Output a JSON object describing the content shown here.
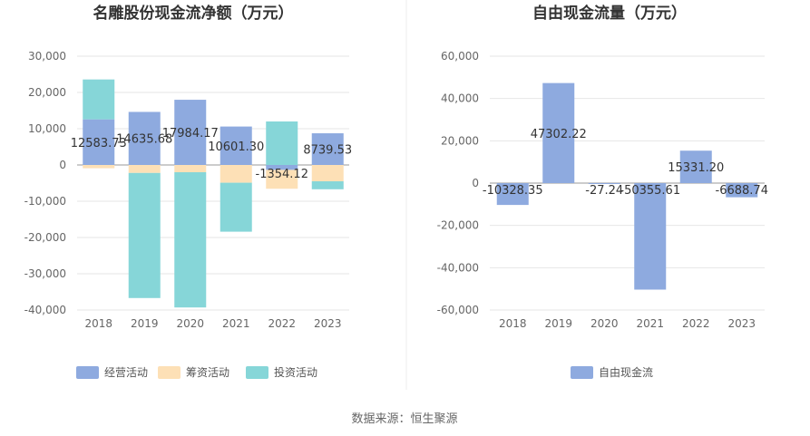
{
  "source_text": "数据来源：恒生聚源",
  "chart_data": [
    {
      "type": "bar",
      "stacked": true,
      "title": "名雕股份现金流净额（万元）",
      "categories": [
        "2018",
        "2019",
        "2020",
        "2021",
        "2022",
        "2023"
      ],
      "ylim": [
        -40000,
        30000
      ],
      "yticks": [
        30000,
        20000,
        10000,
        0,
        -10000,
        -20000,
        -30000,
        -40000
      ],
      "ytick_labels": [
        "30,000",
        "20,000",
        "10,000",
        "0",
        "-10,000",
        "-20,000",
        "-30,000",
        "-40,000"
      ],
      "grid": true,
      "legend_position": "bottom",
      "series": [
        {
          "name": "经营活动",
          "color": "#8eaadf",
          "values": [
            12583.73,
            14635.68,
            17984.17,
            10601.3,
            -1354.12,
            8739.53
          ]
        },
        {
          "name": "筹资活动",
          "color": "#fde0b6",
          "values": [
            -900,
            -2200,
            -2000,
            -4900,
            -5200,
            -4500
          ]
        },
        {
          "name": "投资活动",
          "color": "#86d6d8",
          "values": [
            11000,
            -34500,
            -37300,
            -13500,
            12000,
            -2200
          ]
        }
      ],
      "data_labels": [
        "12583.73",
        "14635.68",
        "17984.17",
        "10601.30",
        "-1354.12",
        "8739.53"
      ]
    },
    {
      "type": "bar",
      "title": "自由现金流量（万元）",
      "categories": [
        "2018",
        "2019",
        "2020",
        "2021",
        "2022",
        "2023"
      ],
      "ylim": [
        -60000,
        60000
      ],
      "yticks": [
        60000,
        40000,
        20000,
        0,
        -20000,
        -40000,
        -60000
      ],
      "ytick_labels": [
        "60,000",
        "40,000",
        "20,000",
        "0",
        "-20,000",
        "-40,000",
        "-60,000"
      ],
      "grid": true,
      "legend_position": "bottom",
      "series": [
        {
          "name": "自由现金流",
          "color": "#8eaadf",
          "values": [
            -10328.35,
            47302.22,
            -27.24,
            -50355.61,
            15331.2,
            -6688.74
          ]
        }
      ],
      "data_labels": [
        "-10328.35",
        "47302.22",
        "-27.24",
        "-50355.61",
        "15331.20",
        "-6688.74"
      ]
    }
  ]
}
